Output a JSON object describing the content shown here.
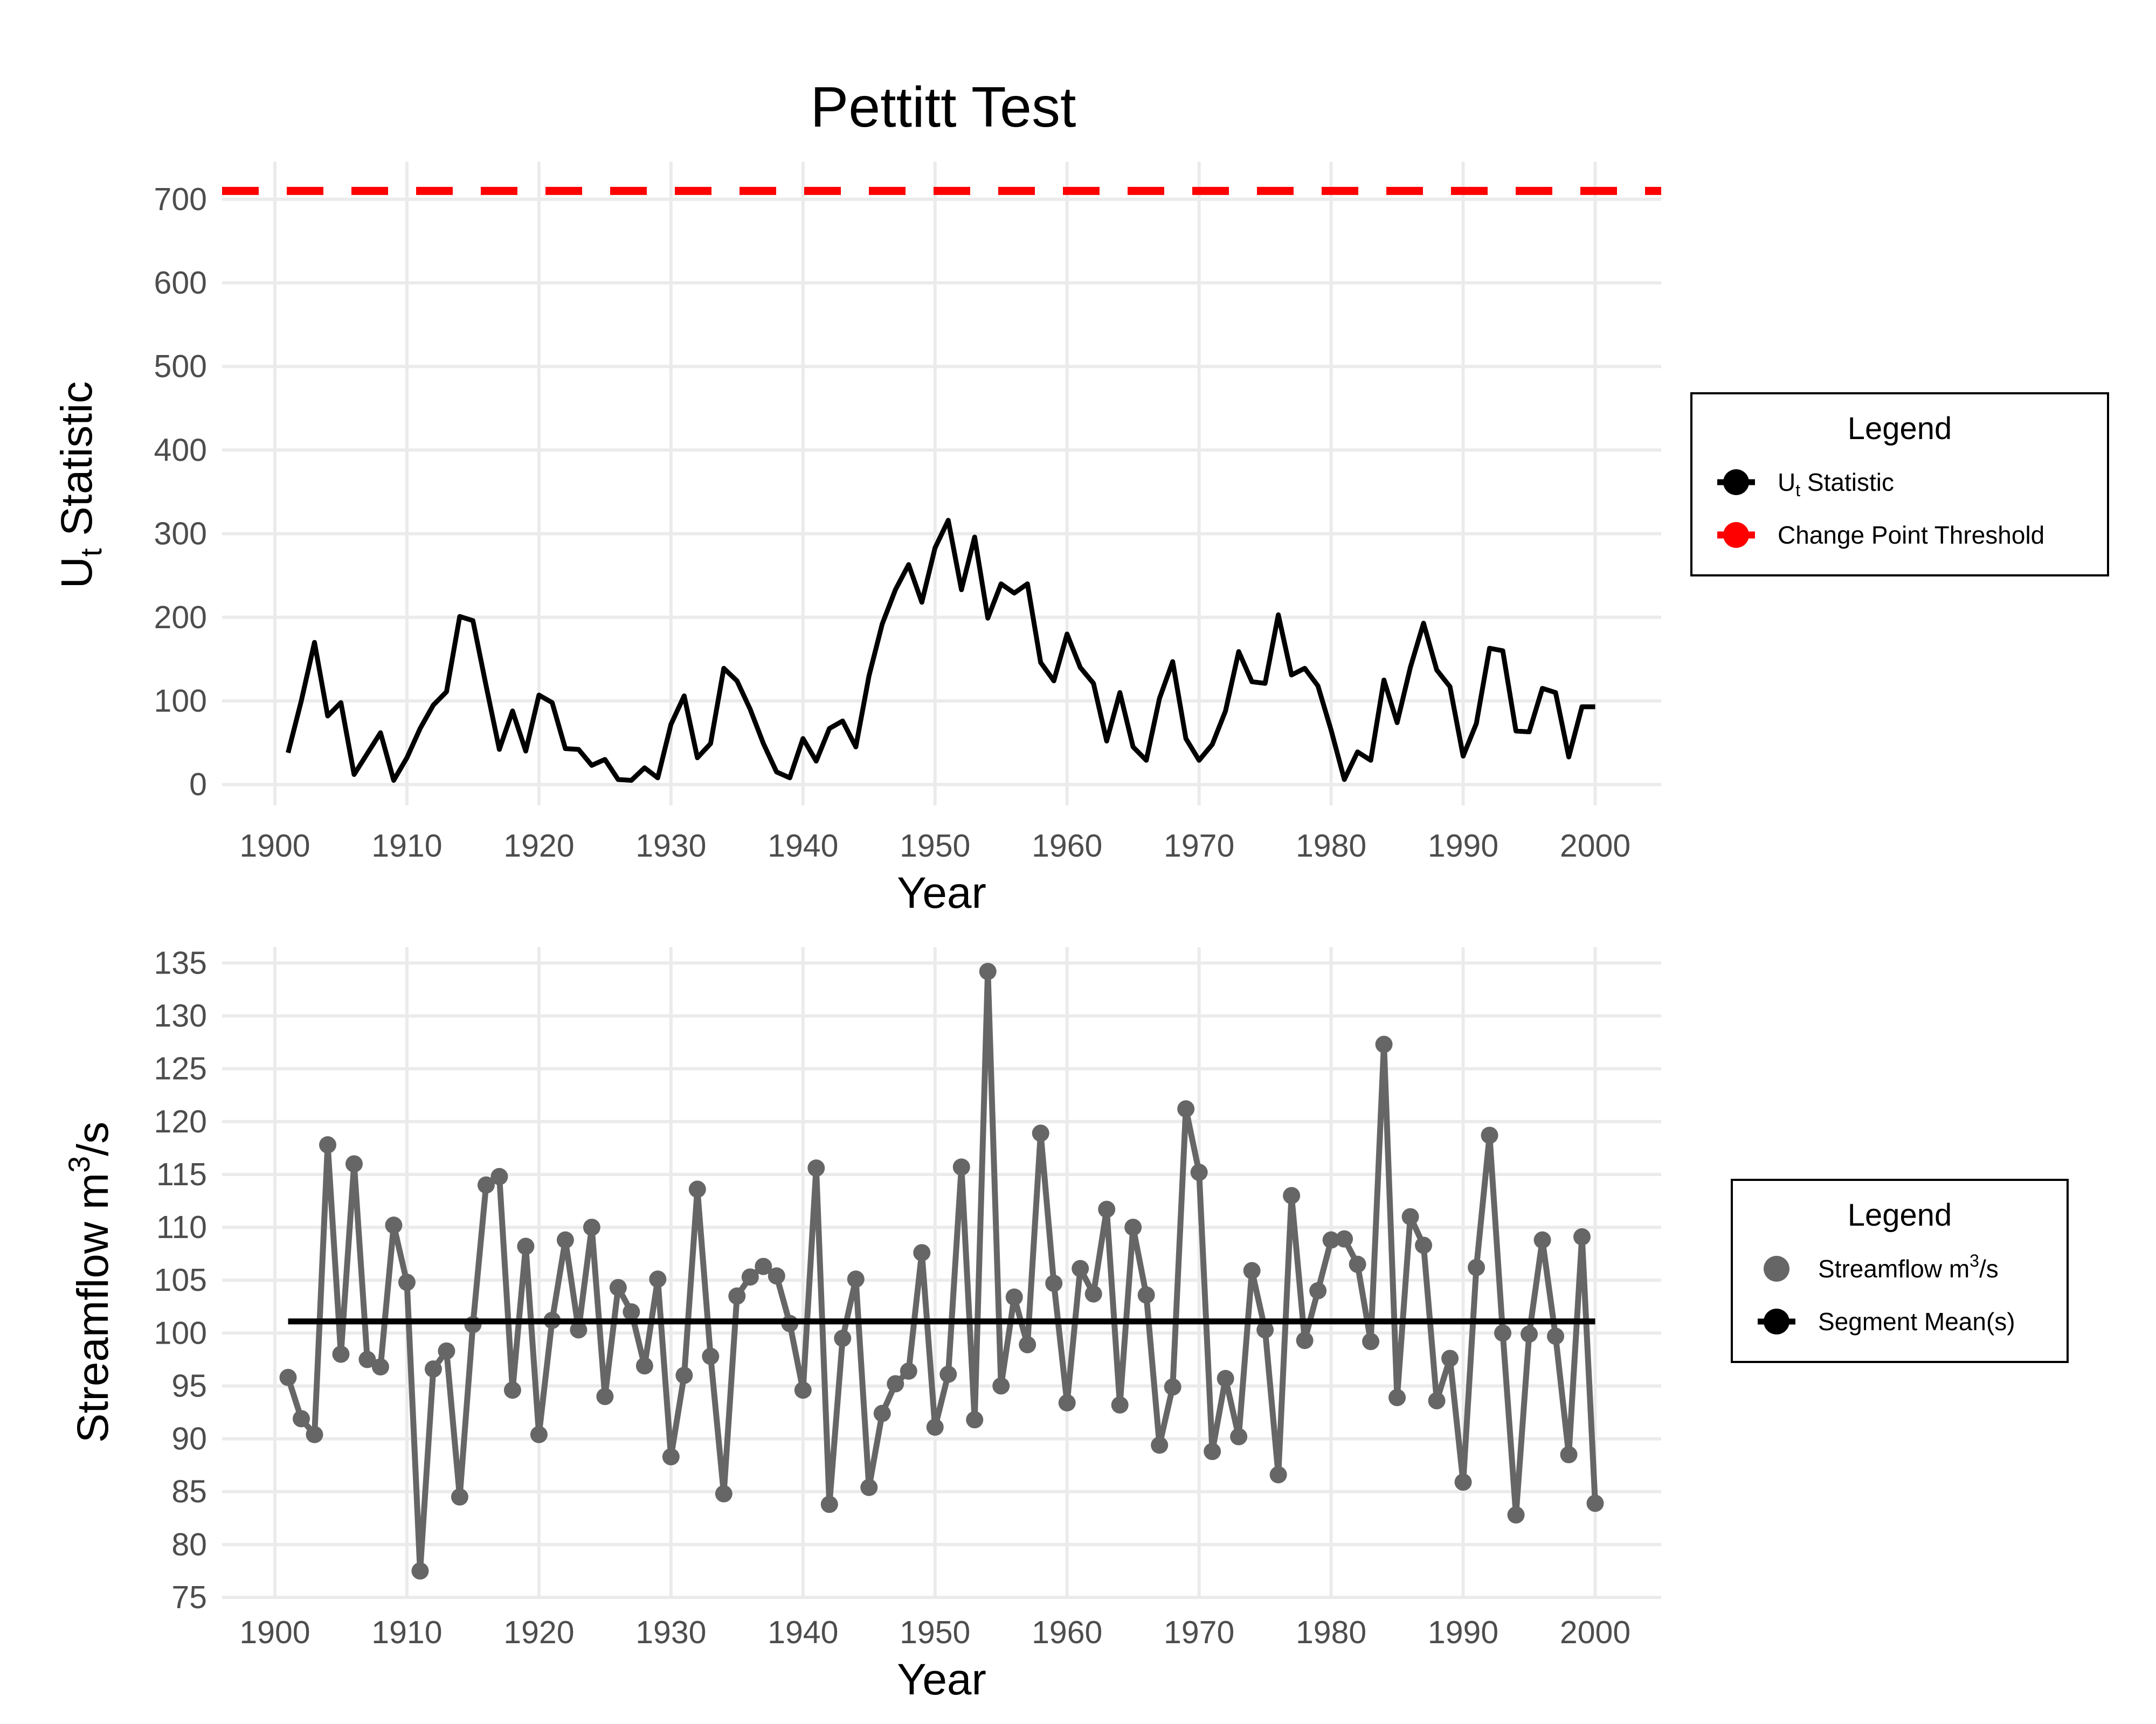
{
  "title": "Pettitt Test",
  "chart_data": [
    {
      "type": "line",
      "ylabel": "U",
      "ylabel_sub": "t",
      "ylabel_rest": " Statistic",
      "xlabel": "Year",
      "xlim": [
        1896,
        2005
      ],
      "ylim": [
        -25,
        745
      ],
      "x_ticks": [
        1900,
        1910,
        1920,
        1930,
        1940,
        1950,
        1960,
        1970,
        1980,
        1990,
        2000
      ],
      "y_ticks": [
        0,
        100,
        200,
        300,
        400,
        500,
        600,
        700
      ],
      "grid": true,
      "threshold": {
        "value": 710,
        "color": "#ff0000",
        "style": "dashed"
      },
      "series": [
        {
          "name": "Ut Statistic",
          "color": "#000000",
          "x": [
            1901,
            1902,
            1903,
            1904,
            1905,
            1906,
            1907,
            1908,
            1909,
            1910,
            1911,
            1912,
            1913,
            1914,
            1915,
            1916,
            1917,
            1918,
            1919,
            1920,
            1921,
            1922,
            1923,
            1924,
            1925,
            1926,
            1927,
            1928,
            1929,
            1930,
            1931,
            1932,
            1933,
            1934,
            1935,
            1936,
            1937,
            1938,
            1939,
            1940,
            1941,
            1942,
            1943,
            1944,
            1945,
            1946,
            1947,
            1948,
            1949,
            1950,
            1951,
            1952,
            1953,
            1954,
            1955,
            1956,
            1957,
            1958,
            1959,
            1960,
            1961,
            1962,
            1963,
            1964,
            1965,
            1966,
            1967,
            1968,
            1969,
            1970,
            1971,
            1972,
            1973,
            1974,
            1975,
            1976,
            1977,
            1978,
            1979,
            1980,
            1981,
            1982,
            1983,
            1984,
            1985,
            1986,
            1987,
            1988,
            1989,
            1990,
            1991,
            1992,
            1993,
            1994,
            1995,
            1996,
            1997,
            1998,
            1999,
            2000
          ],
          "y": [
            38,
            100,
            170,
            82,
            98,
            12,
            37,
            62,
            5,
            32,
            67,
            95,
            111,
            201,
            196,
            118,
            42,
            88,
            40,
            107,
            98,
            43,
            42,
            23,
            30,
            6,
            5,
            20,
            8,
            72,
            106,
            32,
            49,
            139,
            124,
            90,
            49,
            15,
            8,
            55,
            28,
            67,
            76,
            45,
            130,
            192,
            233,
            263,
            218,
            283,
            316,
            233,
            296,
            199,
            240,
            229,
            240,
            146,
            124,
            180,
            140,
            121,
            52,
            110,
            45,
            29,
            103,
            147,
            55,
            29,
            48,
            88,
            159,
            123,
            121,
            203,
            131,
            139,
            118,
            65,
            6,
            39,
            29,
            125,
            74,
            140,
            193,
            137,
            117,
            34,
            73,
            163,
            160,
            64,
            63,
            115,
            110,
            33,
            93,
            93
          ]
        }
      ],
      "legend": {
        "title": "Legend",
        "position": "right",
        "items": [
          {
            "label": "U",
            "sub": "t",
            "rest": " Statistic",
            "color": "#000000",
            "kind": "line-point"
          },
          {
            "label": "Change Point Threshold",
            "sub": "",
            "rest": "",
            "color": "#ff0000",
            "kind": "dashed-point"
          }
        ]
      }
    },
    {
      "type": "line",
      "ylabel": "Streamflow m",
      "ylabel_sup": "3",
      "ylabel_rest": "/s",
      "xlabel": "Year",
      "xlim": [
        1896,
        2005
      ],
      "ylim": [
        75,
        136.5
      ],
      "x_ticks": [
        1900,
        1910,
        1920,
        1930,
        1940,
        1950,
        1960,
        1970,
        1980,
        1990,
        2000
      ],
      "y_ticks": [
        75,
        80,
        85,
        90,
        95,
        100,
        105,
        110,
        115,
        120,
        125,
        130,
        135
      ],
      "grid": true,
      "segment_mean": {
        "value": 101.1,
        "x_start": 1901,
        "x_end": 2000,
        "color": "#000000"
      },
      "series": [
        {
          "name": "Streamflow m3/s",
          "color": "#666666",
          "x": [
            1901,
            1902,
            1903,
            1904,
            1905,
            1906,
            1907,
            1908,
            1909,
            1910,
            1911,
            1912,
            1913,
            1914,
            1915,
            1916,
            1917,
            1918,
            1919,
            1920,
            1921,
            1922,
            1923,
            1924,
            1925,
            1926,
            1927,
            1928,
            1929,
            1930,
            1931,
            1932,
            1933,
            1934,
            1935,
            1936,
            1937,
            1938,
            1939,
            1940,
            1941,
            1942,
            1943,
            1944,
            1945,
            1946,
            1947,
            1948,
            1949,
            1950,
            1951,
            1952,
            1953,
            1954,
            1955,
            1956,
            1957,
            1958,
            1959,
            1960,
            1961,
            1962,
            1963,
            1964,
            1965,
            1966,
            1967,
            1968,
            1969,
            1970,
            1971,
            1972,
            1973,
            1974,
            1975,
            1976,
            1977,
            1978,
            1979,
            1980,
            1981,
            1982,
            1983,
            1984,
            1985,
            1986,
            1987,
            1988,
            1989,
            1990,
            1991,
            1992,
            1993,
            1994,
            1995,
            1996,
            1997,
            1998,
            1999,
            2000
          ],
          "y": [
            95.8,
            91.9,
            90.4,
            117.8,
            98.0,
            116.0,
            97.5,
            96.8,
            110.2,
            104.8,
            77.5,
            96.6,
            98.3,
            84.5,
            100.8,
            114.0,
            114.8,
            94.6,
            108.2,
            90.4,
            101.2,
            108.8,
            100.3,
            110.0,
            94.0,
            104.3,
            102.0,
            96.9,
            105.1,
            88.3,
            96.0,
            113.6,
            97.8,
            84.8,
            103.5,
            105.3,
            106.3,
            105.4,
            100.9,
            94.6,
            115.6,
            83.8,
            99.5,
            105.1,
            85.4,
            92.4,
            95.2,
            96.4,
            107.6,
            91.1,
            96.1,
            115.7,
            91.8,
            134.2,
            95.0,
            103.4,
            98.9,
            118.9,
            104.7,
            93.4,
            106.1,
            103.7,
            111.7,
            93.2,
            110.0,
            103.6,
            89.4,
            94.9,
            121.2,
            115.2,
            88.8,
            95.7,
            90.2,
            105.9,
            100.3,
            86.6,
            113.0,
            99.3,
            104.0,
            108.8,
            108.9,
            106.5,
            99.2,
            127.3,
            93.9,
            111.0,
            108.3,
            93.6,
            97.6,
            85.9,
            106.2,
            118.7,
            100.0,
            82.8,
            99.9,
            108.8,
            99.7,
            88.5,
            109.1,
            83.9
          ]
        }
      ],
      "legend": {
        "title": "Legend",
        "position": "right",
        "items": [
          {
            "label": "Streamflow m",
            "sup": "3",
            "rest": "/s",
            "color": "#666666",
            "kind": "point"
          },
          {
            "label": "Segment Mean(s)",
            "sup": "",
            "rest": "",
            "color": "#000000",
            "kind": "line-point"
          }
        ]
      }
    }
  ]
}
